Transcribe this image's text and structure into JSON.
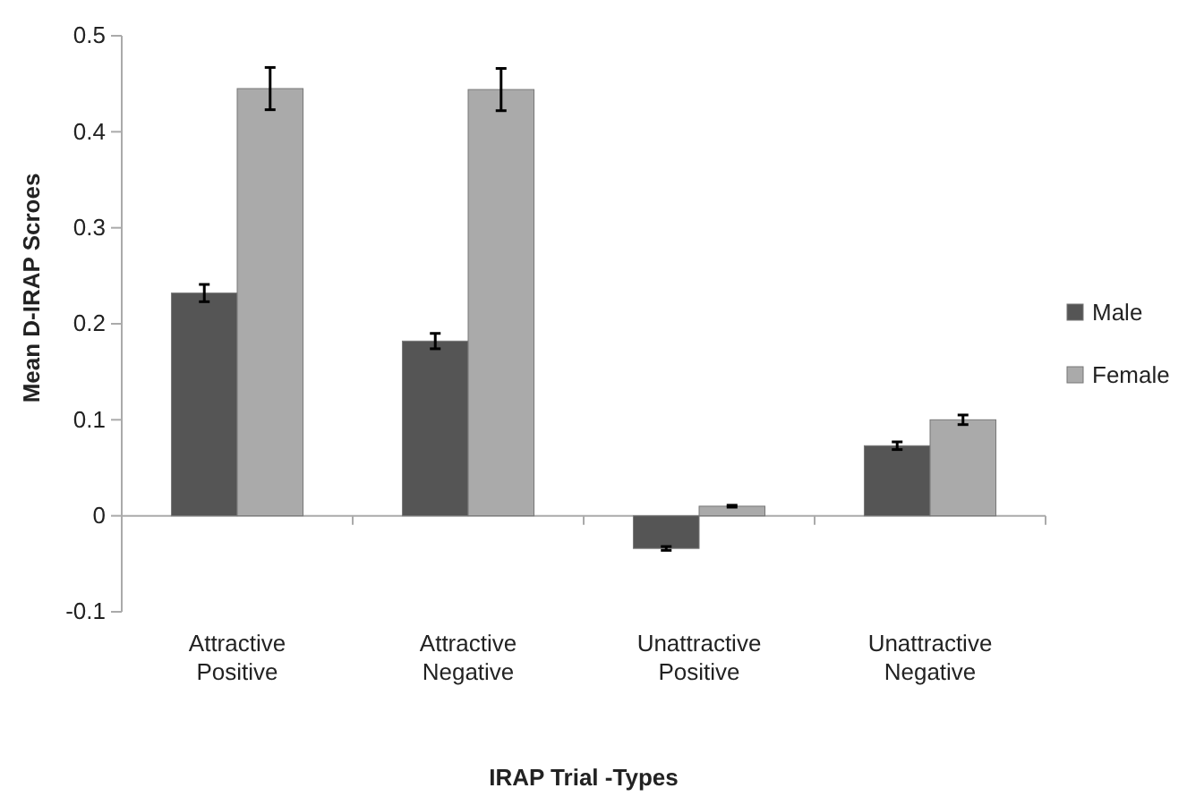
{
  "chart_data": {
    "type": "bar",
    "xlabel": "IRAP Trial -Types",
    "ylabel": "Mean D-IRAP Scroes",
    "categories": [
      "Attractive Positive",
      "Attractive Negative",
      "Unattractive Positive",
      "Unattractive Negative"
    ],
    "series": [
      {
        "name": "Male",
        "color": "#555555",
        "values": [
          0.232,
          0.182,
          -0.034,
          0.073
        ],
        "errors": [
          0.009,
          0.008,
          0.002,
          0.004
        ]
      },
      {
        "name": "Female",
        "color": "#aaaaaa",
        "values": [
          0.445,
          0.444,
          0.01,
          0.1
        ],
        "errors": [
          0.022,
          0.022,
          0.001,
          0.005
        ]
      }
    ],
    "ylim": [
      -0.1,
      0.5
    ],
    "yticks": [
      -0.1,
      0,
      0.1,
      0.2,
      0.3,
      0.4,
      0.5
    ],
    "legend": "right"
  }
}
